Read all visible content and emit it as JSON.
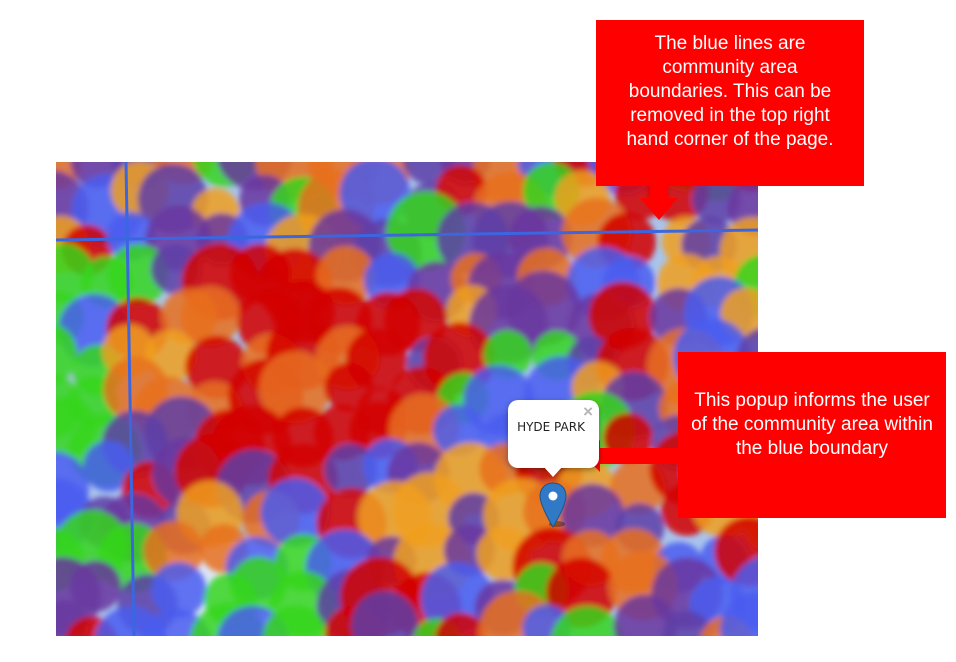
{
  "map": {
    "boundary_color": "#3b66e0",
    "heat_colors": [
      "#d40000",
      "#e8701f",
      "#f0a020",
      "#35d61c",
      "#4a5df0",
      "#5e3ea8",
      "#6a37a0"
    ],
    "base_color": "#a9c4ec"
  },
  "popup": {
    "label": "HYDE PARK",
    "close_label": "×"
  },
  "marker": {
    "icon": "map-pin-icon",
    "color": "#2f79c6"
  },
  "callouts": {
    "boundaries_text": "The blue lines are community area boundaries. This can be removed in the top right hand corner of the page.",
    "popup_text": "This popup informs the user of the community area within the blue boundary",
    "color": "#ff0000"
  }
}
